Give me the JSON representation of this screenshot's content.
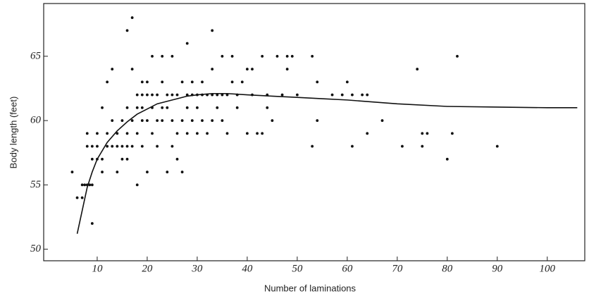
{
  "chart_data": {
    "type": "scatter",
    "x_label": "Number of laminations",
    "y_label": "Body length (feet)",
    "xlim": [
      -0.7,
      107.5
    ],
    "ylim": [
      49.1,
      69.1
    ],
    "xticks": [
      10,
      20,
      30,
      40,
      50,
      60,
      70,
      80,
      90,
      100
    ],
    "yticks": [
      50,
      55,
      60,
      65
    ],
    "series": [
      {
        "marker": "dot",
        "color": "#111111",
        "x": [
          5,
          6,
          7,
          7,
          7.5,
          8,
          8.5,
          9,
          9,
          8,
          8,
          9,
          9,
          10,
          10,
          10,
          11,
          11,
          11,
          12,
          12,
          12,
          13,
          13,
          13,
          14,
          14,
          14,
          15,
          15,
          15,
          16,
          16,
          16,
          16,
          16,
          17,
          17,
          17,
          17,
          18,
          18,
          18,
          18,
          19,
          19,
          19,
          19,
          19,
          20,
          20,
          20,
          20,
          21,
          21,
          21,
          21,
          22,
          22,
          22,
          23,
          23,
          23,
          23,
          24,
          24,
          24,
          25,
          25,
          25,
          25,
          26,
          26,
          26,
          27,
          27,
          27,
          28,
          28,
          28,
          28,
          29,
          29,
          29,
          30,
          30,
          30,
          31,
          31,
          31,
          32,
          32,
          33,
          33,
          33,
          33,
          34,
          34,
          35,
          35,
          35,
          36,
          36,
          37,
          37,
          38,
          38,
          39,
          40,
          40,
          41,
          41,
          42,
          43,
          43,
          44,
          44,
          45,
          46,
          47,
          48,
          48,
          49,
          50,
          53,
          53,
          54,
          54,
          57,
          59,
          60,
          61,
          61,
          63,
          64,
          64,
          67,
          71,
          74,
          75,
          75,
          76,
          80,
          81,
          82,
          90
        ],
        "values": [
          56,
          54,
          54,
          55,
          55,
          55,
          55,
          55,
          52,
          59,
          58,
          58,
          57,
          57,
          58,
          59,
          61,
          56,
          57,
          63,
          58,
          59,
          64,
          60,
          58,
          56,
          59,
          58,
          60,
          58,
          57,
          67,
          61,
          59,
          57,
          58,
          68,
          64,
          60,
          58,
          62,
          61,
          59,
          55,
          63,
          62,
          61,
          60,
          58,
          63,
          62,
          60,
          56,
          65,
          62,
          61,
          59,
          62,
          60,
          58,
          65,
          63,
          61,
          60,
          62,
          61,
          56,
          65,
          62,
          60,
          58,
          62,
          59,
          57,
          63,
          60,
          56,
          66,
          62,
          61,
          59,
          63,
          62,
          60,
          62,
          61,
          59,
          63,
          62,
          60,
          62,
          59,
          67,
          64,
          62,
          60,
          62,
          61,
          65,
          62,
          60,
          62,
          59,
          65,
          63,
          62,
          61,
          63,
          64,
          59,
          64,
          62,
          59,
          65,
          59,
          62,
          61,
          60,
          65,
          62,
          64,
          65,
          65,
          62,
          65,
          58,
          63,
          60,
          62,
          62,
          63,
          62,
          58,
          62,
          62,
          59,
          60,
          58,
          64,
          59,
          58,
          59,
          57,
          59,
          65,
          58
        ]
      },
      {
        "marker": "line",
        "color": "#111111",
        "x": [
          6,
          7,
          8,
          9,
          10,
          12,
          14,
          16,
          18,
          20,
          22,
          25,
          28,
          30,
          33,
          36,
          40,
          45,
          50,
          55,
          60,
          70,
          80,
          90,
          100,
          106
        ],
        "values": [
          51.2,
          53,
          54.8,
          56,
          57,
          58.3,
          59.2,
          59.9,
          60.5,
          60.9,
          61.3,
          61.6,
          61.9,
          62,
          62.1,
          62.1,
          62,
          61.9,
          61.8,
          61.7,
          61.6,
          61.3,
          61.1,
          61.05,
          61,
          61
        ]
      }
    ]
  }
}
